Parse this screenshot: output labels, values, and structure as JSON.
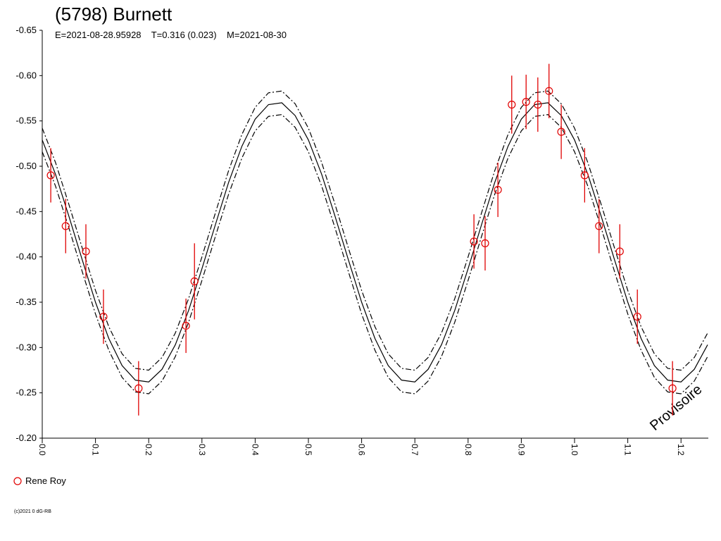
{
  "chart_data": {
    "type": "scatter",
    "title": "(5798) Burnett",
    "subtitle": "E=2021-08-28.95928    T=0.316 (0.023)    M=2021-08-30",
    "annotation": "Provisoire",
    "footer": "(c)2021 0 dG-RB",
    "xlim": [
      0,
      1.25
    ],
    "ylim": [
      -0.2,
      -0.65
    ],
    "xticks": [
      {
        "value": 0,
        "label": "0.0"
      },
      0.1,
      0.2,
      0.3,
      0.4,
      0.5,
      0.6,
      0.7,
      0.8,
      0.9,
      {
        "value": 1,
        "label": "1.0"
      },
      1.1,
      1.2
    ],
    "yticks": [
      -0.65,
      {
        "value": -0.6,
        "label": "-0.60"
      },
      -0.55,
      {
        "value": -0.5,
        "label": "-0.50"
      },
      -0.45,
      {
        "value": -0.4,
        "label": "-0.40"
      },
      -0.35,
      {
        "value": -0.3,
        "label": "-0.30"
      },
      -0.25,
      {
        "value": -0.2,
        "label": "-0.20"
      }
    ],
    "grid": false,
    "series": [
      {
        "name": "Rene Roy",
        "color": "#e00000",
        "x": [
          0.016,
          0.044,
          0.082,
          0.115,
          0.181,
          0.27,
          0.286,
          0.811,
          0.832,
          0.856,
          0.882,
          0.909,
          0.931,
          0.952,
          0.975,
          1.019,
          1.046,
          1.085,
          1.118,
          1.184
        ],
        "values": [
          -0.49,
          -0.434,
          -0.406,
          -0.334,
          -0.255,
          -0.324,
          -0.373,
          -0.417,
          -0.415,
          -0.474,
          -0.568,
          -0.571,
          -0.568,
          -0.583,
          -0.538,
          -0.49,
          -0.434,
          -0.406,
          -0.334,
          -0.255
        ],
        "errors": [
          0.03,
          0.03,
          0.03,
          0.03,
          0.03,
          0.03,
          0.042,
          0.03,
          0.03,
          0.03,
          0.032,
          0.03,
          0.03,
          0.03,
          0.03,
          0.03,
          0.03,
          0.03,
          0.03,
          0.03
        ]
      }
    ],
    "curves": {
      "color": "#000000",
      "x": [
        0,
        0.025,
        0.05,
        0.075,
        0.1,
        0.125,
        0.15,
        0.175,
        0.2,
        0.225,
        0.25,
        0.275,
        0.3,
        0.325,
        0.35,
        0.375,
        0.4,
        0.425,
        0.45,
        0.475,
        0.5,
        0.525,
        0.55,
        0.575,
        0.6,
        0.625,
        0.65,
        0.675,
        0.7,
        0.725,
        0.75,
        0.775,
        0.8,
        0.825,
        0.85,
        0.875,
        0.9,
        0.925,
        0.95,
        0.975,
        1,
        1.025,
        1.05,
        1.075,
        1.1,
        1.125,
        1.15,
        1.175,
        1.2,
        1.225,
        1.25
      ],
      "lines": [
        {
          "style": "solid",
          "values": [
            -0.529,
            -0.491,
            -0.445,
            -0.397,
            -0.35,
            -0.31,
            -0.28,
            -0.264,
            -0.262,
            -0.276,
            -0.303,
            -0.341,
            -0.387,
            -0.435,
            -0.482,
            -0.522,
            -0.552,
            -0.568,
            -0.57,
            -0.556,
            -0.529,
            -0.491,
            -0.445,
            -0.397,
            -0.35,
            -0.31,
            -0.28,
            -0.264,
            -0.262,
            -0.276,
            -0.303,
            -0.341,
            -0.387,
            -0.435,
            -0.482,
            -0.522,
            -0.552,
            -0.568,
            -0.57,
            -0.556,
            -0.529,
            -0.491,
            -0.445,
            -0.397,
            -0.35,
            -0.31,
            -0.28,
            -0.264,
            -0.262,
            -0.276,
            -0.303
          ]
        },
        {
          "style": "dashdot",
          "values": [
            -0.542,
            -0.504,
            -0.458,
            -0.41,
            -0.363,
            -0.323,
            -0.293,
            -0.277,
            -0.275,
            -0.289,
            -0.316,
            -0.354,
            -0.4,
            -0.448,
            -0.495,
            -0.535,
            -0.565,
            -0.581,
            -0.583,
            -0.569,
            -0.542,
            -0.504,
            -0.458,
            -0.41,
            -0.363,
            -0.323,
            -0.293,
            -0.277,
            -0.275,
            -0.289,
            -0.316,
            -0.354,
            -0.4,
            -0.448,
            -0.495,
            -0.535,
            -0.565,
            -0.581,
            -0.583,
            -0.569,
            -0.542,
            -0.504,
            -0.458,
            -0.41,
            -0.363,
            -0.323,
            -0.293,
            -0.277,
            -0.275,
            -0.289,
            -0.316
          ]
        },
        {
          "style": "dashdot",
          "values": [
            -0.516,
            -0.478,
            -0.432,
            -0.384,
            -0.337,
            -0.297,
            -0.267,
            -0.251,
            -0.249,
            -0.263,
            -0.29,
            -0.328,
            -0.374,
            -0.422,
            -0.469,
            -0.509,
            -0.539,
            -0.555,
            -0.557,
            -0.543,
            -0.516,
            -0.478,
            -0.432,
            -0.384,
            -0.337,
            -0.297,
            -0.267,
            -0.251,
            -0.249,
            -0.263,
            -0.29,
            -0.328,
            -0.374,
            -0.422,
            -0.469,
            -0.509,
            -0.539,
            -0.555,
            -0.557,
            -0.543,
            -0.516,
            -0.478,
            -0.432,
            -0.384,
            -0.337,
            -0.297,
            -0.267,
            -0.251,
            -0.249,
            -0.263,
            -0.29
          ]
        }
      ]
    }
  }
}
